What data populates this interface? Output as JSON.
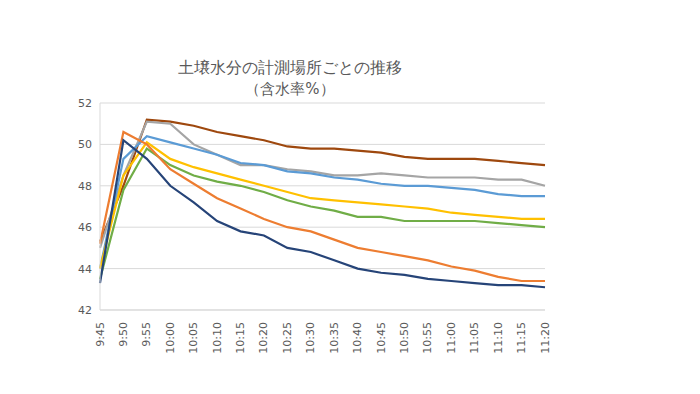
{
  "chart_data": {
    "type": "line",
    "title": "土壌水分の計測場所ごとの推移",
    "subtitle": "（含水率%）",
    "categories": [
      "9:45",
      "9:50",
      "9:55",
      "10:00",
      "10:05",
      "10:10",
      "10:15",
      "10:20",
      "10:25",
      "10:30",
      "10:35",
      "10:40",
      "10:45",
      "10:50",
      "10:55",
      "11:00",
      "11:05",
      "11:10",
      "11:15",
      "11:20"
    ],
    "series": [
      {
        "color": "#9e480e",
        "values": [
          45.3,
          48.0,
          51.2,
          51.1,
          50.9,
          50.6,
          50.4,
          50.2,
          49.9,
          49.8,
          49.8,
          49.7,
          49.6,
          49.4,
          49.3,
          49.3,
          49.3,
          49.2,
          49.1,
          49.0
        ]
      },
      {
        "color": "#a5a5a5",
        "values": [
          45.0,
          48.5,
          51.1,
          51.0,
          50.0,
          49.5,
          49.0,
          49.0,
          48.8,
          48.7,
          48.5,
          48.5,
          48.6,
          48.5,
          48.4,
          48.4,
          48.4,
          48.3,
          48.3,
          48.0
        ]
      },
      {
        "color": "#5b9bd5",
        "values": [
          44.0,
          49.3,
          50.4,
          50.1,
          49.8,
          49.5,
          49.1,
          49.0,
          48.7,
          48.6,
          48.4,
          48.3,
          48.1,
          48.0,
          48.0,
          47.9,
          47.8,
          47.6,
          47.5,
          47.5
        ]
      },
      {
        "color": "#ffc000",
        "values": [
          44.0,
          48.5,
          50.1,
          49.3,
          48.9,
          48.6,
          48.3,
          48.0,
          47.7,
          47.4,
          47.3,
          47.2,
          47.1,
          47.0,
          46.9,
          46.7,
          46.6,
          46.5,
          46.4,
          46.4
        ]
      },
      {
        "color": "#70ad47",
        "values": [
          43.5,
          47.8,
          49.8,
          49.0,
          48.5,
          48.2,
          48.0,
          47.7,
          47.3,
          47.0,
          46.8,
          46.5,
          46.5,
          46.3,
          46.3,
          46.3,
          46.3,
          46.2,
          46.1,
          46.0
        ]
      },
      {
        "color": "#ed7d31",
        "values": [
          45.2,
          50.6,
          50.0,
          48.8,
          48.1,
          47.4,
          46.9,
          46.4,
          46.0,
          45.8,
          45.4,
          45.0,
          44.8,
          44.6,
          44.4,
          44.1,
          43.9,
          43.6,
          43.4,
          43.4
        ]
      },
      {
        "color": "#264478",
        "values": [
          43.3,
          50.2,
          49.3,
          48.0,
          47.2,
          46.3,
          45.8,
          45.6,
          45.0,
          44.8,
          44.4,
          44.0,
          43.8,
          43.7,
          43.5,
          43.4,
          43.3,
          43.2,
          43.2,
          43.1
        ]
      }
    ],
    "ylim": [
      42,
      52
    ],
    "yticks": [
      42,
      44,
      46,
      48,
      50,
      52
    ],
    "grid": true
  }
}
